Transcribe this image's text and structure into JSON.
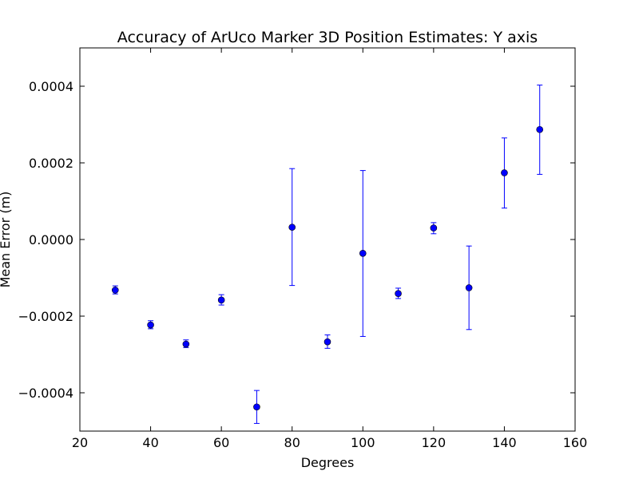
{
  "chart_data": {
    "type": "scatter",
    "title": "Accuracy of ArUco Marker 3D Position Estimates: Y axis",
    "xlabel": "Degrees",
    "ylabel": "Mean Error (m)",
    "xlim": [
      20,
      160
    ],
    "ylim": [
      -0.0005,
      0.0005
    ],
    "xticks": [
      20,
      40,
      60,
      80,
      100,
      120,
      140,
      160
    ],
    "xtick_labels": [
      "20",
      "40",
      "60",
      "80",
      "100",
      "120",
      "140",
      "160"
    ],
    "yticks": [
      -0.0004,
      -0.0002,
      0.0,
      0.0002,
      0.0004
    ],
    "ytick_labels": [
      "−0.0004",
      "−0.0002",
      "0.0000",
      "0.0002",
      "0.0004"
    ],
    "grid": false,
    "series": [
      {
        "color": "#0000ff",
        "marker": "circle",
        "x": [
          30,
          40,
          50,
          60,
          70,
          80,
          90,
          100,
          110,
          120,
          130,
          140,
          150
        ],
        "y": [
          -0.000132,
          -0.000223,
          -0.000273,
          -0.000158,
          -0.000437,
          3.2e-05,
          -0.000267,
          -3.6e-05,
          -0.000141,
          3e-05,
          -0.000126,
          0.000174,
          0.000287
        ],
        "err_low": [
          -0.000142,
          -0.000233,
          -0.000282,
          -0.000171,
          -0.00048,
          -0.00012,
          -0.000284,
          -0.000253,
          -0.000154,
          1.5e-05,
          -0.000235,
          8.2e-05,
          0.00017
        ],
        "err_high": [
          -0.000121,
          -0.000212,
          -0.000262,
          -0.000144,
          -0.000394,
          0.000185,
          -0.000249,
          0.00018,
          -0.000127,
          4.4e-05,
          -1.7e-05,
          0.000265,
          0.000403
        ]
      }
    ]
  }
}
